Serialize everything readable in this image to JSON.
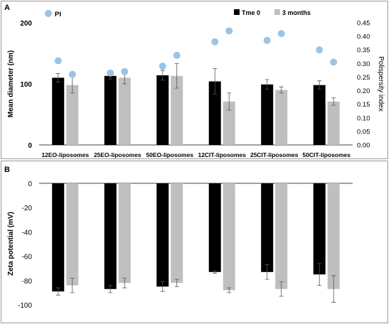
{
  "chart_data": [
    {
      "panel_label": "A",
      "type": "bar",
      "categories": [
        "12EO-liposomes",
        "25EO-liposomes",
        "50EO-liposomes",
        "12CIT-liposomes",
        "25CIT-liposomes",
        "50CIT-liposomes"
      ],
      "ylabel": "Mean diameter (nm)",
      "ylim": [
        0,
        200
      ],
      "yticks": [
        "0",
        "100",
        "200"
      ],
      "y2label": "Polispersity index",
      "y2lim": [
        0,
        0.45
      ],
      "y2ticks": [
        "0.00",
        "0.05",
        "0.10",
        "0.15",
        "0.20",
        "0.25",
        "0.30",
        "0.35",
        "0.40",
        "0.45"
      ],
      "series": [
        {
          "name": "Tme 0",
          "type": "bar",
          "color": "#000000",
          "values": [
            110,
            113,
            114,
            104,
            99,
            98
          ],
          "errors": [
            7,
            5,
            8,
            21,
            8,
            7
          ]
        },
        {
          "name": "3 months",
          "type": "bar",
          "color": "#bfbfbf",
          "values": [
            98,
            110,
            113,
            71,
            90,
            71
          ],
          "errors": [
            13,
            10,
            20,
            14,
            5,
            6
          ]
        },
        {
          "name": "PI",
          "type": "scatter",
          "axis": "y2",
          "color": "#9dc3e6",
          "points": [
            [
              0.31,
              0.26
            ],
            [
              0.265,
              0.27
            ],
            [
              0.29,
              0.33
            ],
            [
              0.38,
              0.42
            ],
            [
              0.385,
              0.41
            ],
            [
              0.35,
              0.305
            ]
          ]
        }
      ],
      "legend": "top"
    },
    {
      "panel_label": "B",
      "type": "bar",
      "categories": [
        "12EO-liposomes",
        "25EO-liposomes",
        "50EO-liposomes",
        "12CIT-liposomes",
        "25CIT-liposomes",
        "50CIT-liposomes"
      ],
      "ylabel": "Zeta potential (mV)",
      "ylim": [
        -100,
        0
      ],
      "yticks": [
        "0",
        "-20",
        "-40",
        "-60",
        "-80",
        "-100"
      ],
      "series": [
        {
          "name": "Tme 0",
          "color": "#000000",
          "values": [
            -89,
            -87,
            -85,
            -73,
            -73,
            -75
          ],
          "errors": [
            3,
            3,
            4,
            1,
            6,
            9
          ]
        },
        {
          "name": "3 months",
          "color": "#bfbfbf",
          "values": [
            -84,
            -82,
            -82,
            -88,
            -87,
            -87
          ],
          "errors": [
            6,
            4,
            3,
            2,
            6,
            11
          ]
        }
      ]
    }
  ]
}
